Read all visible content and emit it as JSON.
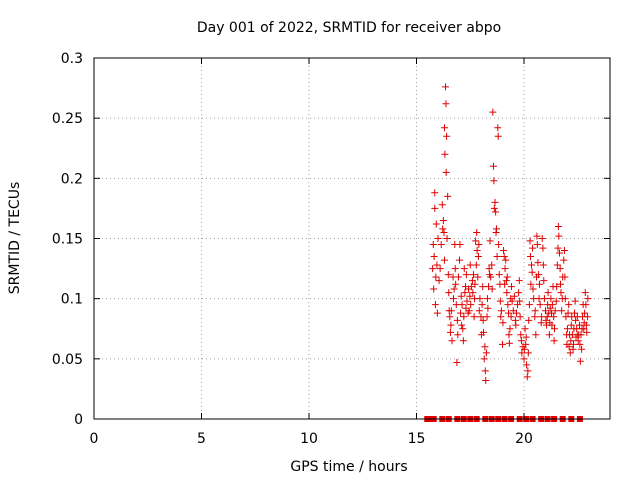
{
  "chart_data": {
    "type": "scatter",
    "title": "Day 001 of 2022, SRMTID for receiver abpo",
    "xlabel": "GPS time / hours",
    "ylabel": "SRMTID / TECUs",
    "xlim": [
      0,
      24
    ],
    "ylim": [
      0,
      0.3
    ],
    "xticks": [
      0,
      5,
      10,
      15,
      20
    ],
    "yticks": [
      0,
      0.05,
      0.1,
      0.15,
      0.2,
      0.25,
      0.3
    ],
    "xtick_labels": [
      "0",
      "5",
      "10",
      "15",
      "20"
    ],
    "ytick_labels": [
      "0",
      "0.05",
      "0.1",
      "0.15",
      "0.2",
      "0.25",
      "0.3"
    ],
    "grid": true,
    "marker": "+",
    "color": "#e00000",
    "series": [
      {
        "name": "SRMTID",
        "points": [
          [
            15.75,
            0.125
          ],
          [
            15.78,
            0.145
          ],
          [
            15.8,
            0.108
          ],
          [
            15.82,
            0.135
          ],
          [
            15.85,
            0.175
          ],
          [
            15.85,
            0.188
          ],
          [
            15.88,
            0.095
          ],
          [
            15.9,
            0.118
          ],
          [
            15.92,
            0.162
          ],
          [
            15.95,
            0.128
          ],
          [
            15.97,
            0.088
          ],
          [
            16.0,
            0.15
          ],
          [
            16.05,
            0.115
          ],
          [
            16.1,
            0.125
          ],
          [
            16.15,
            0.145
          ],
          [
            16.2,
            0.178
          ],
          [
            16.22,
            0.158
          ],
          [
            16.25,
            0.165
          ],
          [
            16.28,
            0.155
          ],
          [
            16.3,
            0.132
          ],
          [
            16.3,
            0.242
          ],
          [
            16.32,
            0.22
          ],
          [
            16.35,
            0.276
          ],
          [
            16.37,
            0.262
          ],
          [
            16.38,
            0.205
          ],
          [
            16.4,
            0.235
          ],
          [
            16.42,
            0.15
          ],
          [
            16.45,
            0.185
          ],
          [
            16.48,
            0.12
          ],
          [
            16.5,
            0.105
          ],
          [
            16.52,
            0.09
          ],
          [
            16.55,
            0.085
          ],
          [
            16.58,
            0.072
          ],
          [
            16.6,
            0.078
          ],
          [
            16.62,
            0.09
          ],
          [
            16.65,
            0.065
          ],
          [
            16.7,
            0.118
          ],
          [
            16.72,
            0.1
          ],
          [
            16.75,
            0.108
          ],
          [
            16.78,
            0.145
          ],
          [
            16.8,
            0.125
          ],
          [
            16.82,
            0.112
          ],
          [
            16.85,
            0.095
          ],
          [
            16.88,
            0.047
          ],
          [
            16.9,
            0.082
          ],
          [
            16.92,
            0.07
          ],
          [
            16.95,
            0.118
          ],
          [
            17.0,
            0.132
          ],
          [
            17.02,
            0.145
          ],
          [
            17.05,
            0.088
          ],
          [
            17.08,
            0.102
          ],
          [
            17.1,
            0.078
          ],
          [
            17.12,
            0.095
          ],
          [
            17.15,
            0.075
          ],
          [
            17.18,
            0.065
          ],
          [
            17.2,
            0.085
          ],
          [
            17.22,
            0.125
          ],
          [
            17.25,
            0.105
          ],
          [
            17.28,
            0.11
          ],
          [
            17.3,
            0.092
          ],
          [
            17.32,
            0.12
          ],
          [
            17.35,
            0.098
          ],
          [
            17.4,
            0.088
          ],
          [
            17.42,
            0.108
          ],
          [
            17.45,
            0.09
          ],
          [
            17.48,
            0.102
          ],
          [
            17.5,
            0.128
          ],
          [
            17.52,
            0.095
          ],
          [
            17.55,
            0.11
          ],
          [
            17.6,
            0.115
          ],
          [
            17.62,
            0.105
          ],
          [
            17.65,
            0.12
          ],
          [
            17.68,
            0.085
          ],
          [
            17.7,
            0.1
          ],
          [
            17.72,
            0.112
          ],
          [
            17.75,
            0.148
          ],
          [
            17.78,
            0.128
          ],
          [
            17.8,
            0.155
          ],
          [
            17.82,
            0.14
          ],
          [
            17.85,
            0.118
          ],
          [
            17.88,
            0.135
          ],
          [
            17.9,
            0.145
          ],
          [
            17.92,
            0.09
          ],
          [
            17.95,
            0.1
          ],
          [
            18.0,
            0.085
          ],
          [
            18.02,
            0.07
          ],
          [
            18.05,
            0.095
          ],
          [
            18.08,
            0.11
          ],
          [
            18.1,
            0.082
          ],
          [
            18.12,
            0.072
          ],
          [
            18.15,
            0.05
          ],
          [
            18.18,
            0.06
          ],
          [
            18.2,
            0.04
          ],
          [
            18.22,
            0.032
          ],
          [
            18.25,
            0.055
          ],
          [
            18.28,
            0.085
          ],
          [
            18.3,
            0.1
          ],
          [
            18.32,
            0.092
          ],
          [
            18.35,
            0.11
          ],
          [
            18.38,
            0.125
          ],
          [
            18.4,
            0.12
          ],
          [
            18.42,
            0.148
          ],
          [
            18.45,
            0.118
          ],
          [
            18.5,
            0.128
          ],
          [
            18.52,
            0.108
          ],
          [
            18.55,
            0.255
          ],
          [
            18.58,
            0.21
          ],
          [
            18.6,
            0.198
          ],
          [
            18.62,
            0.175
          ],
          [
            18.65,
            0.18
          ],
          [
            18.68,
            0.172
          ],
          [
            18.7,
            0.155
          ],
          [
            18.72,
            0.158
          ],
          [
            18.75,
            0.135
          ],
          [
            18.78,
            0.242
          ],
          [
            18.8,
            0.235
          ],
          [
            18.82,
            0.145
          ],
          [
            18.85,
            0.12
          ],
          [
            18.88,
            0.112
          ],
          [
            18.9,
            0.098
          ],
          [
            18.92,
            0.085
          ],
          [
            18.95,
            0.09
          ],
          [
            19.0,
            0.062
          ],
          [
            19.02,
            0.08
          ],
          [
            19.05,
            0.14
          ],
          [
            19.08,
            0.135
          ],
          [
            19.1,
            0.112
          ],
          [
            19.12,
            0.125
          ],
          [
            19.15,
            0.132
          ],
          [
            19.18,
            0.115
          ],
          [
            19.2,
            0.105
          ],
          [
            19.22,
            0.118
          ],
          [
            19.25,
            0.095
          ],
          [
            19.28,
            0.088
          ],
          [
            19.3,
            0.07
          ],
          [
            19.32,
            0.063
          ],
          [
            19.35,
            0.075
          ],
          [
            19.38,
            0.1
          ],
          [
            19.4,
            0.085
          ],
          [
            19.42,
            0.11
          ],
          [
            19.45,
            0.098
          ],
          [
            19.5,
            0.09
          ],
          [
            19.55,
            0.102
          ],
          [
            19.6,
            0.082
          ],
          [
            19.62,
            0.078
          ],
          [
            19.65,
            0.088
          ],
          [
            19.7,
            0.095
          ],
          [
            19.75,
            0.105
          ],
          [
            19.78,
            0.115
          ],
          [
            19.8,
            0.098
          ],
          [
            19.82,
            0.085
          ],
          [
            19.85,
            0.07
          ],
          [
            19.88,
            0.065
          ],
          [
            19.9,
            0.055
          ],
          [
            19.95,
            0.06
          ],
          [
            20.0,
            0.05
          ],
          [
            20.02,
            0.058
          ],
          [
            20.05,
            0.075
          ],
          [
            20.08,
            0.062
          ],
          [
            20.1,
            0.068
          ],
          [
            20.12,
            0.045
          ],
          [
            20.15,
            0.035
          ],
          [
            20.18,
            0.04
          ],
          [
            20.2,
            0.055
          ],
          [
            20.22,
            0.082
          ],
          [
            20.25,
            0.095
          ],
          [
            20.28,
            0.148
          ],
          [
            20.3,
            0.135
          ],
          [
            20.32,
            0.112
          ],
          [
            20.35,
            0.128
          ],
          [
            20.38,
            0.122
          ],
          [
            20.4,
            0.142
          ],
          [
            20.42,
            0.108
          ],
          [
            20.45,
            0.1
          ],
          [
            20.5,
            0.085
          ],
          [
            20.52,
            0.09
          ],
          [
            20.55,
            0.07
          ],
          [
            20.58,
            0.118
          ],
          [
            20.6,
            0.152
          ],
          [
            20.62,
            0.145
          ],
          [
            20.65,
            0.13
          ],
          [
            20.68,
            0.12
          ],
          [
            20.7,
            0.1
          ],
          [
            20.72,
            0.112
          ],
          [
            20.75,
            0.095
          ],
          [
            20.8,
            0.08
          ],
          [
            20.82,
            0.085
          ],
          [
            20.85,
            0.15
          ],
          [
            20.88,
            0.142
          ],
          [
            20.9,
            0.128
          ],
          [
            20.92,
            0.115
          ],
          [
            20.95,
            0.1
          ],
          [
            21.0,
            0.09
          ],
          [
            21.02,
            0.082
          ],
          [
            21.05,
            0.078
          ],
          [
            21.08,
            0.085
          ],
          [
            21.1,
            0.095
          ],
          [
            21.12,
            0.105
          ],
          [
            21.15,
            0.088
          ],
          [
            21.18,
            0.07
          ],
          [
            21.2,
            0.08
          ],
          [
            21.22,
            0.092
          ],
          [
            21.25,
            0.1
          ],
          [
            21.28,
            0.088
          ],
          [
            21.3,
            0.078
          ],
          [
            21.32,
            0.095
          ],
          [
            21.35,
            0.11
          ],
          [
            21.38,
            0.085
          ],
          [
            21.4,
            0.065
          ],
          [
            21.42,
            0.075
          ],
          [
            21.45,
            0.09
          ],
          [
            21.5,
            0.098
          ],
          [
            21.52,
            0.11
          ],
          [
            21.55,
            0.128
          ],
          [
            21.58,
            0.142
          ],
          [
            21.6,
            0.16
          ],
          [
            21.62,
            0.152
          ],
          [
            21.65,
            0.138
          ],
          [
            21.68,
            0.125
          ],
          [
            21.7,
            0.112
          ],
          [
            21.72,
            0.105
          ],
          [
            21.75,
            0.09
          ],
          [
            21.78,
            0.1
          ],
          [
            21.8,
            0.118
          ],
          [
            21.85,
            0.132
          ],
          [
            21.88,
            0.14
          ],
          [
            21.9,
            0.118
          ],
          [
            21.92,
            0.1
          ],
          [
            21.95,
            0.085
          ],
          [
            21.98,
            0.07
          ],
          [
            22.0,
            0.062
          ],
          [
            22.02,
            0.075
          ],
          [
            22.05,
            0.088
          ],
          [
            22.08,
            0.095
          ],
          [
            22.1,
            0.06
          ],
          [
            22.12,
            0.07
          ],
          [
            22.15,
            0.055
          ],
          [
            22.18,
            0.065
          ],
          [
            22.2,
            0.078
          ],
          [
            22.22,
            0.085
          ],
          [
            22.25,
            0.07
          ],
          [
            22.28,
            0.058
          ],
          [
            22.3,
            0.062
          ],
          [
            22.32,
            0.075
          ],
          [
            22.35,
            0.088
          ],
          [
            22.38,
            0.098
          ],
          [
            22.4,
            0.082
          ],
          [
            22.42,
            0.068
          ],
          [
            22.45,
            0.075
          ],
          [
            22.48,
            0.085
          ],
          [
            22.5,
            0.07
          ],
          [
            22.52,
            0.065
          ],
          [
            22.55,
            0.07
          ],
          [
            22.58,
            0.078
          ],
          [
            22.6,
            0.062
          ],
          [
            22.62,
            0.048
          ],
          [
            22.65,
            0.07
          ],
          [
            22.68,
            0.058
          ],
          [
            22.7,
            0.075
          ],
          [
            22.72,
            0.085
          ],
          [
            22.75,
            0.095
          ],
          [
            22.78,
            0.075
          ],
          [
            22.8,
            0.08
          ],
          [
            22.82,
            0.088
          ],
          [
            22.85,
            0.105
          ],
          [
            22.88,
            0.095
          ],
          [
            22.9,
            0.078
          ],
          [
            22.92,
            0.072
          ],
          [
            22.95,
            0.085
          ],
          [
            22.97,
            0.1
          ]
        ]
      }
    ],
    "zero_markers_x": [
      15.5,
      15.6,
      15.7,
      15.8,
      16.2,
      16.5,
      16.9,
      17.2,
      17.5,
      17.8,
      18.2,
      18.5,
      18.8,
      19.1,
      19.4,
      19.8,
      20.1,
      20.4,
      20.8,
      21.1,
      21.4,
      21.8,
      22.2,
      22.6
    ]
  }
}
